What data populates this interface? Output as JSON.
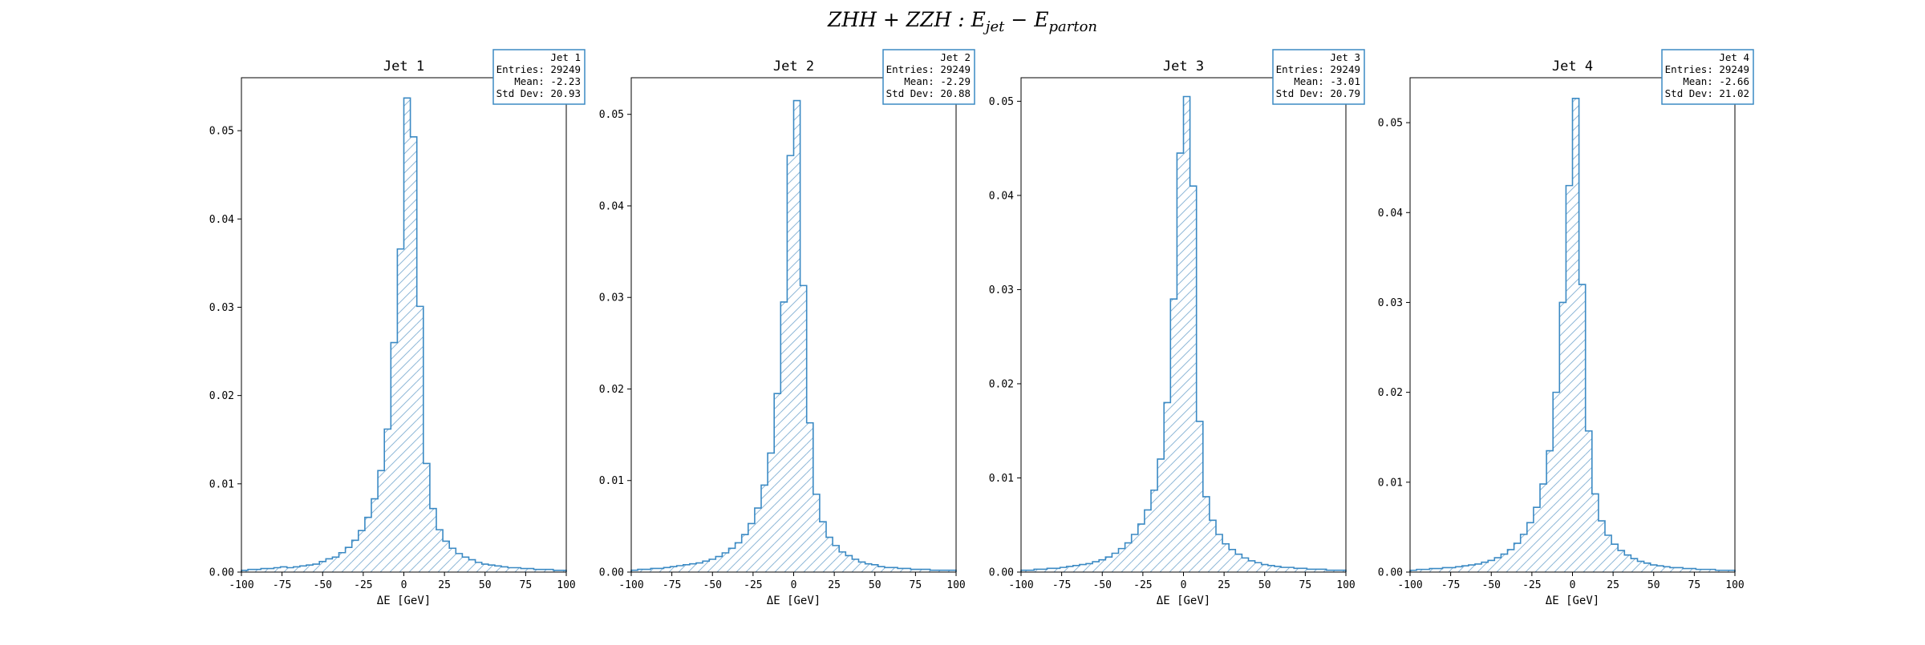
{
  "figure": {
    "title_parts": [
      "ZHH + ZZH : E",
      "jet",
      " − E",
      "parton"
    ]
  },
  "style": {
    "line_color": "#3b8ac4",
    "hatch_color": "#8fb8d8",
    "hatch": "/",
    "stats_box_edge": "#3b8ac4"
  },
  "chart_data": [
    {
      "type": "histogram",
      "title": "Jet 1",
      "xlabel": "ΔE [GeV]",
      "ylabel": "",
      "xlim": [
        -100,
        100
      ],
      "ylim": [
        0,
        0.056
      ],
      "x_ticks": [
        -100,
        -75,
        -50,
        -25,
        0,
        25,
        50,
        75,
        100
      ],
      "y_ticks": [
        0.0,
        0.01,
        0.02,
        0.03,
        0.04,
        0.05
      ],
      "bin_edges_start": -100,
      "bin_width": 4,
      "values": [
        0.0002,
        0.0003,
        0.0003,
        0.0004,
        0.0004,
        0.0005,
        0.0006,
        0.0005,
        0.0006,
        0.0007,
        0.0008,
        0.0009,
        0.0012,
        0.0015,
        0.0017,
        0.0022,
        0.0028,
        0.0036,
        0.0047,
        0.0062,
        0.0083,
        0.0115,
        0.0162,
        0.026,
        0.0366,
        0.0537,
        0.0493,
        0.0301,
        0.0123,
        0.0072,
        0.0048,
        0.0035,
        0.0027,
        0.0021,
        0.0017,
        0.0014,
        0.0011,
        0.0009,
        0.0008,
        0.0007,
        0.0006,
        0.0005,
        0.0005,
        0.0004,
        0.0004,
        0.0003,
        0.0003,
        0.0003,
        0.0002,
        0.0002
      ],
      "stats": {
        "name": "Jet 1",
        "entries": "Entries: 29249",
        "mean": "Mean: -2.23",
        "std": "Std Dev: 20.93"
      }
    },
    {
      "type": "histogram",
      "title": "Jet 2",
      "xlabel": "ΔE [GeV]",
      "ylabel": "",
      "xlim": [
        -100,
        100
      ],
      "ylim": [
        0,
        0.054
      ],
      "x_ticks": [
        -100,
        -75,
        -50,
        -25,
        0,
        25,
        50,
        75,
        100
      ],
      "y_ticks": [
        0.0,
        0.01,
        0.02,
        0.03,
        0.04,
        0.05
      ],
      "bin_edges_start": -100,
      "bin_width": 4,
      "values": [
        0.0002,
        0.0003,
        0.0003,
        0.0004,
        0.0004,
        0.0005,
        0.0006,
        0.0007,
        0.0008,
        0.0009,
        0.001,
        0.0012,
        0.0014,
        0.0017,
        0.0021,
        0.0026,
        0.0032,
        0.0041,
        0.0053,
        0.007,
        0.0095,
        0.013,
        0.0195,
        0.0295,
        0.0455,
        0.0515,
        0.0313,
        0.0163,
        0.0085,
        0.0055,
        0.0038,
        0.0029,
        0.0022,
        0.0018,
        0.0014,
        0.0011,
        0.0009,
        0.0008,
        0.0006,
        0.0005,
        0.0005,
        0.0004,
        0.0004,
        0.0003,
        0.0003,
        0.0003,
        0.0002,
        0.0002,
        0.0002,
        0.0002
      ],
      "stats": {
        "name": "Jet 2",
        "entries": "Entries: 29249",
        "mean": "Mean: -2.29",
        "std": "Std Dev: 20.88"
      }
    },
    {
      "type": "histogram",
      "title": "Jet 3",
      "xlabel": "ΔE [GeV]",
      "ylabel": "",
      "xlim": [
        -100,
        100
      ],
      "ylim": [
        0,
        0.0525
      ],
      "x_ticks": [
        -100,
        -75,
        -50,
        -25,
        0,
        25,
        50,
        75,
        100
      ],
      "y_ticks": [
        0.0,
        0.01,
        0.02,
        0.03,
        0.04,
        0.05
      ],
      "bin_edges_start": -100,
      "bin_width": 4,
      "values": [
        0.0002,
        0.0002,
        0.0003,
        0.0003,
        0.0004,
        0.0004,
        0.0005,
        0.0006,
        0.0007,
        0.0008,
        0.0009,
        0.0011,
        0.0013,
        0.0016,
        0.002,
        0.0025,
        0.0031,
        0.004,
        0.0051,
        0.0066,
        0.0087,
        0.012,
        0.018,
        0.029,
        0.0445,
        0.0505,
        0.041,
        0.016,
        0.008,
        0.0055,
        0.004,
        0.003,
        0.0024,
        0.0019,
        0.0015,
        0.0012,
        0.001,
        0.0008,
        0.0007,
        0.0006,
        0.0005,
        0.0005,
        0.0004,
        0.0004,
        0.0003,
        0.0003,
        0.0003,
        0.0002,
        0.0002,
        0.0002
      ],
      "stats": {
        "name": "Jet 3",
        "entries": "Entries: 29249",
        "mean": "Mean: -3.01",
        "std": "Std Dev: 20.79"
      }
    },
    {
      "type": "histogram",
      "title": "Jet 4",
      "xlabel": "ΔE [GeV]",
      "ylabel": "",
      "xlim": [
        -100,
        100
      ],
      "ylim": [
        0,
        0.055
      ],
      "x_ticks": [
        -100,
        -75,
        -50,
        -25,
        0,
        25,
        50,
        75,
        100
      ],
      "y_ticks": [
        0.0,
        0.01,
        0.02,
        0.03,
        0.04,
        0.05
      ],
      "bin_edges_start": -100,
      "bin_width": 4,
      "values": [
        0.0002,
        0.0003,
        0.0003,
        0.0004,
        0.0004,
        0.0005,
        0.0005,
        0.0006,
        0.0007,
        0.0008,
        0.0009,
        0.0011,
        0.0013,
        0.0016,
        0.002,
        0.0025,
        0.0032,
        0.0042,
        0.0055,
        0.0072,
        0.0098,
        0.0135,
        0.02,
        0.03,
        0.043,
        0.0527,
        0.032,
        0.0157,
        0.0087,
        0.0057,
        0.0041,
        0.0031,
        0.0024,
        0.0019,
        0.0015,
        0.0012,
        0.001,
        0.0008,
        0.0007,
        0.0006,
        0.0005,
        0.0005,
        0.0004,
        0.0004,
        0.0003,
        0.0003,
        0.0003,
        0.0002,
        0.0002,
        0.0002
      ],
      "stats": {
        "name": "Jet 4",
        "entries": "Entries: 29249",
        "mean": "Mean: -2.66",
        "std": "Std Dev: 21.02"
      }
    }
  ]
}
